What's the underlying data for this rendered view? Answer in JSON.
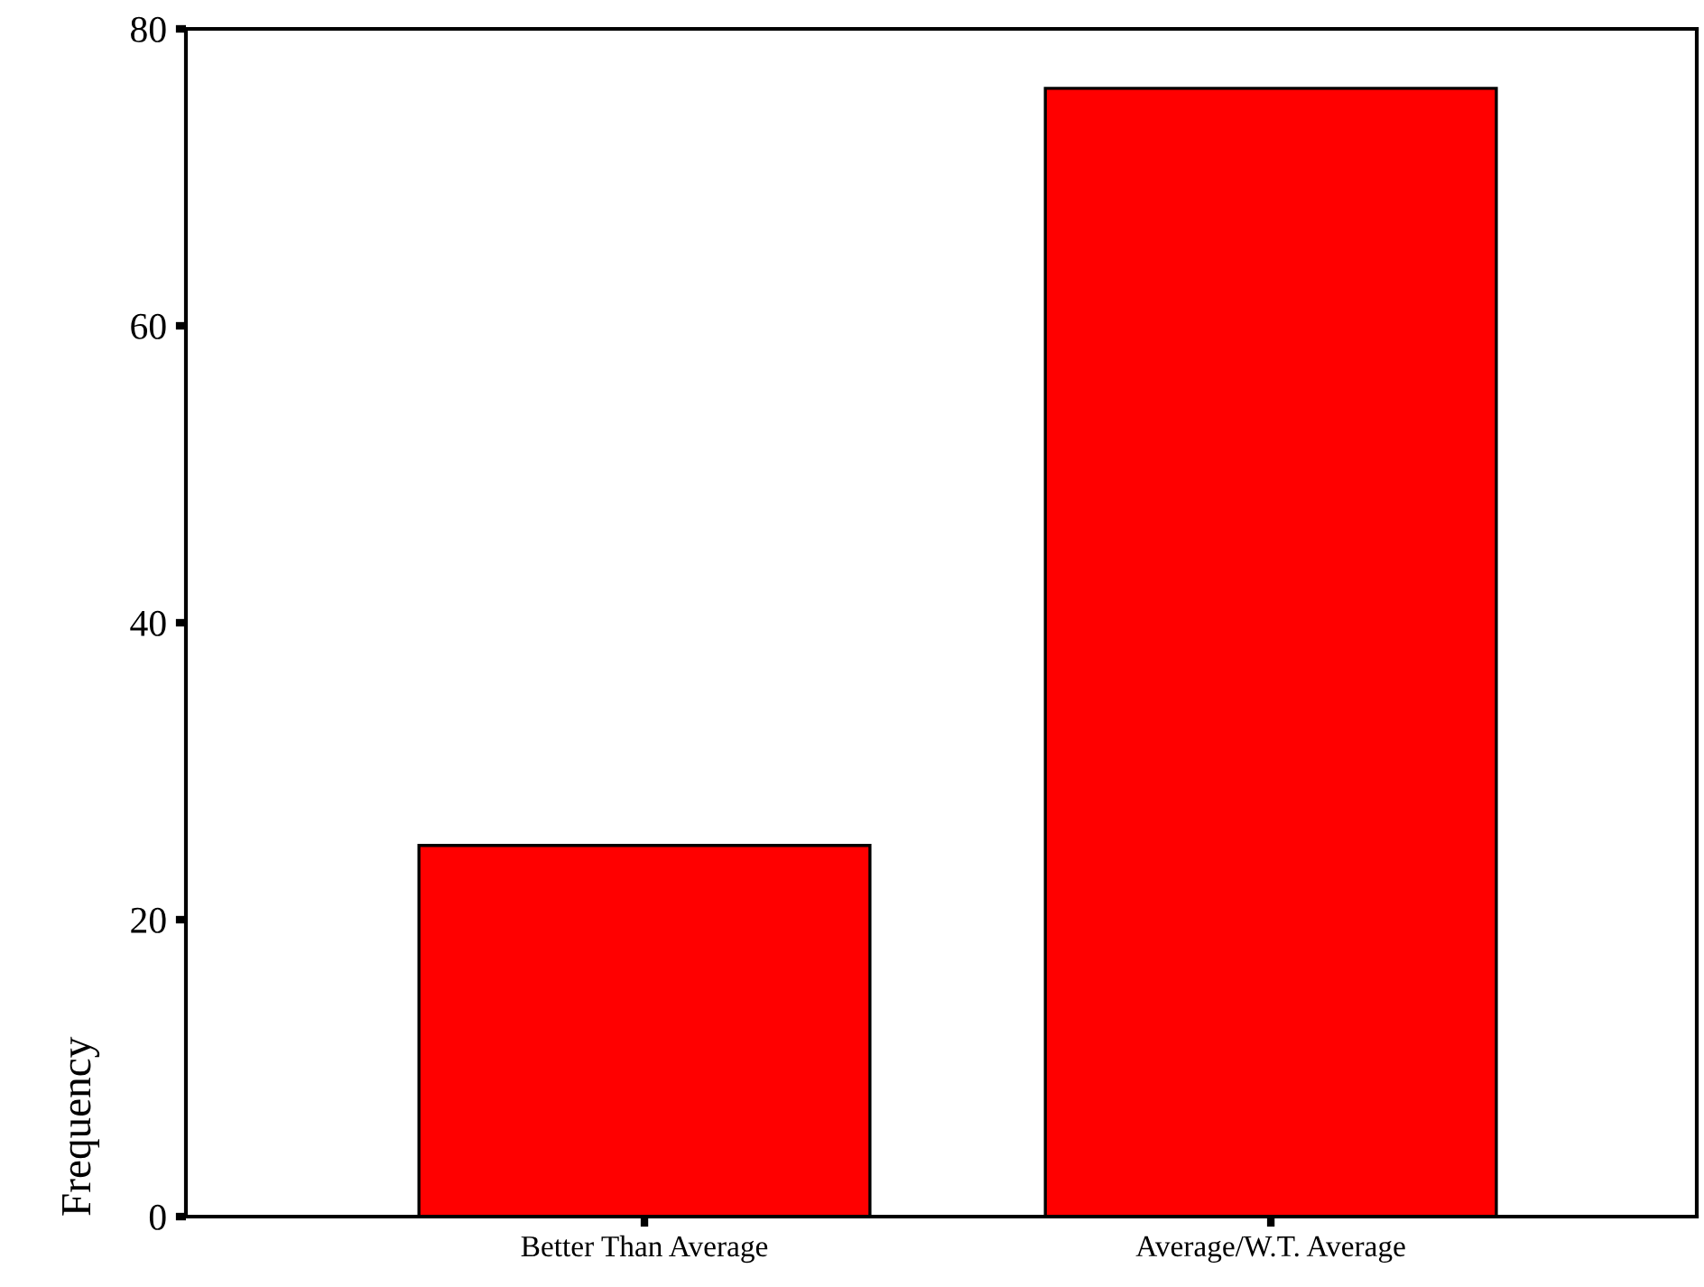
{
  "chart_data": {
    "type": "bar",
    "ylabel": "Frequency",
    "categories": [
      "Better Than Average",
      "Average/W.T. Average"
    ],
    "values": [
      25,
      76
    ],
    "color": "#ff0000",
    "ylim": [
      0,
      80
    ],
    "yticks": [
      0,
      20,
      40,
      60,
      80
    ],
    "grid": false
  }
}
